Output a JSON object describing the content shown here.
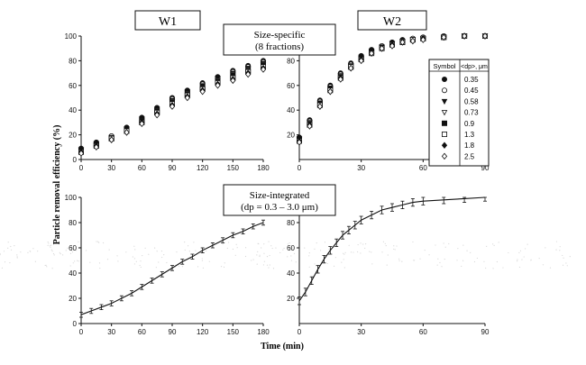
{
  "figure": {
    "labels": {
      "w1": "W1",
      "w2": "W2",
      "size_specific_line1": "Size-specific",
      "size_specific_line2": "(8 fractions)",
      "size_integrated_line1": "Size-integrated",
      "size_integrated_line2": "(dp = 0.3 – 3.0 μm)"
    },
    "ylabel": "Particle removal efficiency (%)",
    "xlabel": "Time (min)",
    "legend": {
      "header_symbol": "Symbol",
      "header_size": "<dp>, μm",
      "entries": [
        {
          "symbol": "filled-circle",
          "size": "0.35"
        },
        {
          "symbol": "open-circle",
          "size": "0.45"
        },
        {
          "symbol": "filled-triangle-down",
          "size": "0.58"
        },
        {
          "symbol": "open-triangle-down",
          "size": "0.73"
        },
        {
          "symbol": "filled-square",
          "size": "0.9"
        },
        {
          "symbol": "open-square",
          "size": "1.3"
        },
        {
          "symbol": "filled-diamond",
          "size": "1.8"
        },
        {
          "symbol": "open-diamond",
          "size": "2.5"
        }
      ]
    }
  },
  "chart_data": [
    {
      "type": "scatter",
      "panel": "size-specific W1",
      "x_ticks": [
        0,
        30,
        60,
        90,
        120,
        150,
        180
      ],
      "y_ticks": [
        0,
        20,
        40,
        60,
        80,
        100
      ],
      "xlim": [
        0,
        180
      ],
      "ylim": [
        0,
        100
      ],
      "series": [
        {
          "name": "0.35",
          "x": [
            0,
            15,
            30,
            45,
            60,
            75,
            90,
            105,
            120,
            135,
            150,
            165,
            180
          ],
          "y": [
            9,
            14,
            19,
            26,
            34,
            42,
            50,
            56,
            62,
            67,
            72,
            76,
            80
          ]
        },
        {
          "name": "0.45",
          "x": [
            0,
            15,
            30,
            45,
            60,
            75,
            90,
            105,
            120,
            135,
            150,
            165,
            180
          ],
          "y": [
            8,
            13,
            19,
            25,
            33,
            41,
            49,
            55,
            61,
            66,
            71,
            75,
            79
          ]
        },
        {
          "name": "0.58",
          "x": [
            0,
            15,
            30,
            45,
            60,
            75,
            90,
            105,
            120,
            135,
            150,
            165,
            180
          ],
          "y": [
            8,
            13,
            18,
            25,
            33,
            41,
            48,
            55,
            60,
            66,
            70,
            74,
            78
          ]
        },
        {
          "name": "0.73",
          "x": [
            0,
            15,
            30,
            45,
            60,
            75,
            90,
            105,
            120,
            135,
            150,
            165,
            180
          ],
          "y": [
            7,
            12,
            18,
            24,
            32,
            40,
            47,
            54,
            59,
            64,
            69,
            73,
            77
          ]
        },
        {
          "name": "0.9",
          "x": [
            0,
            15,
            30,
            45,
            60,
            75,
            90,
            105,
            120,
            135,
            150,
            165,
            180
          ],
          "y": [
            7,
            12,
            17,
            24,
            31,
            39,
            46,
            53,
            58,
            63,
            68,
            72,
            76
          ]
        },
        {
          "name": "1.3",
          "x": [
            0,
            15,
            30,
            45,
            60,
            75,
            90,
            105,
            120,
            135,
            150,
            165,
            180
          ],
          "y": [
            6,
            11,
            17,
            23,
            30,
            38,
            45,
            52,
            57,
            62,
            66,
            71,
            75
          ]
        },
        {
          "name": "1.8",
          "x": [
            0,
            15,
            30,
            45,
            60,
            75,
            90,
            105,
            120,
            135,
            150,
            165,
            180
          ],
          "y": [
            6,
            11,
            16,
            22,
            30,
            37,
            44,
            51,
            56,
            61,
            65,
            70,
            74
          ]
        },
        {
          "name": "2.5",
          "x": [
            0,
            15,
            30,
            45,
            60,
            75,
            90,
            105,
            120,
            135,
            150,
            165,
            180
          ],
          "y": [
            5,
            10,
            16,
            22,
            29,
            36,
            43,
            50,
            55,
            60,
            64,
            69,
            73
          ]
        }
      ]
    },
    {
      "type": "scatter",
      "panel": "size-specific W2",
      "x_ticks": [
        0,
        30,
        60,
        90
      ],
      "y_ticks": [
        20,
        40,
        60,
        80
      ],
      "xlim": [
        0,
        90
      ],
      "ylim": [
        0,
        100
      ],
      "series": [
        {
          "name": "0.35",
          "x": [
            0,
            5,
            10,
            15,
            20,
            25,
            30,
            35,
            40,
            45,
            50,
            55,
            60,
            70,
            80,
            90
          ],
          "y": [
            18,
            32,
            48,
            60,
            70,
            78,
            84,
            89,
            92,
            95,
            97,
            98,
            99,
            100,
            100,
            100
          ]
        },
        {
          "name": "0.45",
          "x": [
            0,
            5,
            10,
            15,
            20,
            25,
            30,
            35,
            40,
            45,
            50,
            55,
            60,
            70,
            80,
            90
          ],
          "y": [
            17,
            31,
            47,
            59,
            69,
            77,
            83,
            88,
            92,
            94,
            96,
            98,
            99,
            100,
            100,
            100
          ]
        },
        {
          "name": "0.58",
          "x": [
            0,
            5,
            10,
            15,
            20,
            25,
            30,
            35,
            40,
            45,
            50,
            55,
            60,
            70,
            80,
            90
          ],
          "y": [
            17,
            30,
            46,
            58,
            68,
            76,
            83,
            88,
            91,
            94,
            96,
            97,
            98,
            99,
            100,
            100
          ]
        },
        {
          "name": "0.73",
          "x": [
            0,
            5,
            10,
            15,
            20,
            25,
            30,
            35,
            40,
            45,
            50,
            55,
            60,
            70,
            80,
            90
          ],
          "y": [
            16,
            30,
            45,
            57,
            68,
            76,
            82,
            87,
            91,
            94,
            96,
            97,
            98,
            99,
            100,
            100
          ]
        },
        {
          "name": "0.9",
          "x": [
            0,
            5,
            10,
            15,
            20,
            25,
            30,
            35,
            40,
            45,
            50,
            55,
            60,
            70,
            80,
            90
          ],
          "y": [
            16,
            29,
            45,
            57,
            67,
            75,
            82,
            87,
            91,
            93,
            95,
            97,
            98,
            99,
            100,
            100
          ]
        },
        {
          "name": "1.3",
          "x": [
            0,
            5,
            10,
            15,
            20,
            25,
            30,
            35,
            40,
            45,
            50,
            55,
            60,
            70,
            80,
            90
          ],
          "y": [
            15,
            28,
            44,
            56,
            66,
            75,
            81,
            86,
            90,
            93,
            95,
            97,
            98,
            99,
            100,
            100
          ]
        },
        {
          "name": "1.8",
          "x": [
            0,
            5,
            10,
            15,
            20,
            25,
            30,
            35,
            40,
            45,
            50,
            55,
            60,
            70,
            80,
            90
          ],
          "y": [
            15,
            28,
            43,
            55,
            66,
            74,
            81,
            86,
            90,
            93,
            95,
            96,
            98,
            99,
            100,
            100
          ]
        },
        {
          "name": "2.5",
          "x": [
            0,
            5,
            10,
            15,
            20,
            25,
            30,
            35,
            40,
            45,
            50,
            55,
            60,
            70,
            80,
            90
          ],
          "y": [
            14,
            27,
            43,
            55,
            65,
            74,
            80,
            86,
            90,
            92,
            95,
            96,
            97,
            99,
            100,
            100
          ]
        }
      ]
    },
    {
      "type": "line",
      "panel": "size-integrated W1",
      "x_ticks": [
        0,
        30,
        60,
        90,
        120,
        150,
        180
      ],
      "y_ticks": [
        0,
        20,
        40,
        60,
        80,
        100
      ],
      "xlim": [
        0,
        180
      ],
      "ylim": [
        0,
        100
      ],
      "x": [
        0,
        10,
        20,
        30,
        40,
        50,
        60,
        70,
        80,
        90,
        100,
        110,
        120,
        130,
        140,
        150,
        160,
        170,
        180
      ],
      "y": [
        7,
        10,
        13,
        16,
        20,
        24,
        29,
        34,
        39,
        44,
        49,
        53,
        58,
        62,
        66,
        70,
        73,
        77,
        80
      ],
      "error": 2
    },
    {
      "type": "line",
      "panel": "size-integrated W2",
      "x_ticks": [
        0,
        30,
        60,
        90
      ],
      "y_ticks": [
        20,
        40,
        60,
        80
      ],
      "xlim": [
        0,
        90
      ],
      "ylim": [
        0,
        100
      ],
      "x": [
        0,
        3,
        6,
        9,
        12,
        15,
        18,
        21,
        24,
        27,
        30,
        35,
        40,
        45,
        50,
        55,
        60,
        70,
        80,
        90
      ],
      "y": [
        18,
        25,
        34,
        43,
        51,
        58,
        64,
        70,
        74,
        78,
        82,
        86,
        90,
        92,
        94,
        96,
        97,
        98,
        99,
        100
      ],
      "error": 3
    }
  ]
}
